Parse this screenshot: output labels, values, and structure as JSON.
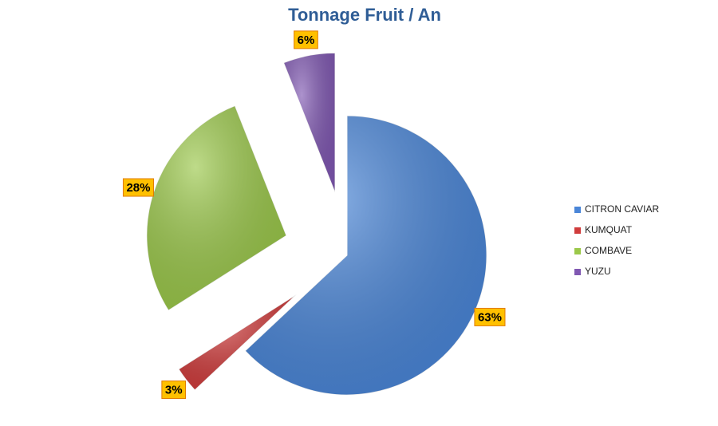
{
  "chart_data": {
    "type": "pie",
    "title": "Tonnage Fruit / An",
    "categories": [
      "CITRON CAVIAR",
      "KUMQUAT",
      "COMBAVE",
      "YUZU"
    ],
    "values": [
      63,
      3,
      28,
      6
    ],
    "value_labels": [
      "63%",
      "3%",
      "28%",
      "6%"
    ],
    "colors": [
      "#4a86d8",
      "#d03c3c",
      "#9bc84a",
      "#8058b2"
    ],
    "legend": "right"
  }
}
